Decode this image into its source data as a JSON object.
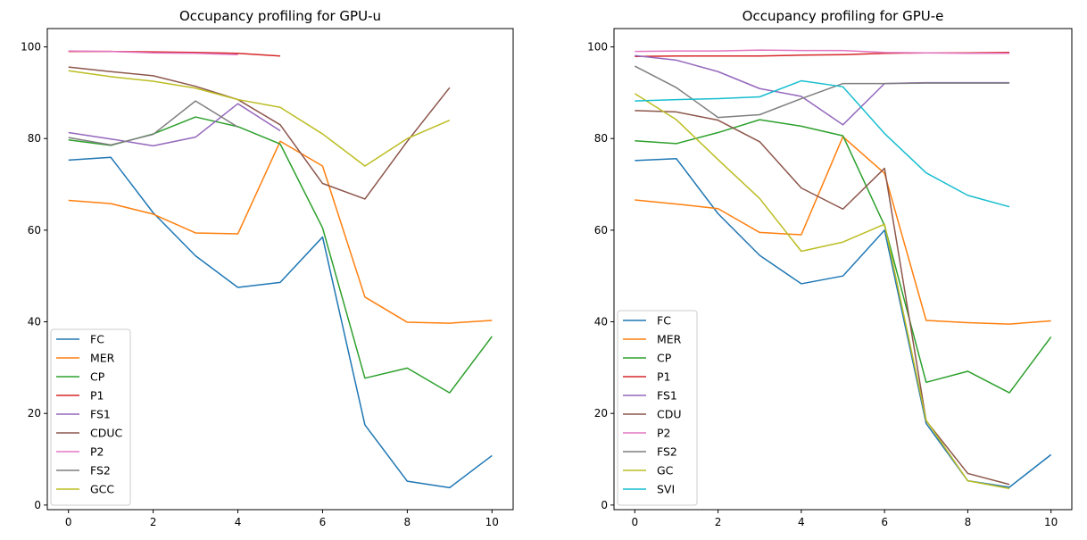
{
  "chart_data": [
    {
      "type": "line",
      "title": "Occupancy profiling for GPU-u",
      "xlabel": "",
      "ylabel": "",
      "xlim": [
        -0.5,
        10.5
      ],
      "ylim": [
        -1,
        104
      ],
      "xticks": [
        0,
        2,
        4,
        6,
        8,
        10
      ],
      "yticks": [
        0,
        20,
        40,
        60,
        80,
        100
      ],
      "grid": false,
      "legend_position": "lower-left",
      "series": [
        {
          "name": "FC",
          "color": "#1f77b4",
          "x": [
            0,
            1,
            2,
            3,
            4,
            5,
            6,
            7,
            8,
            9,
            10
          ],
          "y": [
            75.3,
            75.9,
            63.8,
            54.4,
            47.5,
            48.6,
            58.5,
            17.5,
            5.2,
            3.8,
            10.8
          ]
        },
        {
          "name": "MER",
          "color": "#ff7f0e",
          "x": [
            0,
            1,
            2,
            3,
            4,
            5,
            6,
            7,
            8,
            9,
            10
          ],
          "y": [
            66.5,
            65.8,
            63.5,
            59.4,
            59.2,
            79.4,
            74.0,
            45.4,
            39.9,
            39.7,
            40.3
          ]
        },
        {
          "name": "CP",
          "color": "#2ca02c",
          "x": [
            0,
            1,
            2,
            3,
            4,
            5,
            6,
            7,
            8,
            9,
            10
          ],
          "y": [
            79.7,
            78.5,
            81.0,
            84.7,
            82.6,
            78.8,
            60.5,
            27.7,
            29.9,
            24.5,
            36.8
          ]
        },
        {
          "name": "P1",
          "color": "#d62728",
          "x": [
            0,
            1,
            2,
            3,
            4,
            5
          ],
          "y": [
            99.0,
            99.0,
            98.9,
            98.8,
            98.6,
            98.0
          ]
        },
        {
          "name": "FS1",
          "color": "#9467bd",
          "x": [
            0,
            1,
            2,
            3,
            4,
            5
          ],
          "y": [
            81.3,
            79.9,
            78.4,
            80.3,
            87.6,
            81.7
          ]
        },
        {
          "name": "CDUC",
          "color": "#8c564b",
          "x": [
            0,
            1,
            2,
            3,
            4,
            5,
            6,
            7,
            8,
            9
          ],
          "y": [
            95.6,
            94.6,
            93.7,
            91.4,
            88.5,
            83.0,
            70.2,
            66.8,
            79.4,
            91.1
          ]
        },
        {
          "name": "P2",
          "color": "#e377c2",
          "x": [
            0,
            1,
            2,
            3,
            4
          ],
          "y": [
            99.1,
            99.0,
            98.7,
            98.6,
            98.3
          ]
        },
        {
          "name": "FS2",
          "color": "#7f7f7f",
          "x": [
            0,
            1,
            2,
            3,
            4
          ],
          "y": [
            80.2,
            78.6,
            80.9,
            88.2,
            82.5
          ]
        },
        {
          "name": "GCC",
          "color": "#bcbd22",
          "x": [
            0,
            1,
            2,
            3,
            4,
            5,
            6,
            7,
            8,
            9
          ],
          "y": [
            94.8,
            93.5,
            92.5,
            91.0,
            88.5,
            86.8,
            81.0,
            74.0,
            80.0,
            84.0
          ]
        }
      ]
    },
    {
      "type": "line",
      "title": "Occupancy profiling for GPU-e",
      "xlabel": "",
      "ylabel": "",
      "xlim": [
        -0.5,
        10.5
      ],
      "ylim": [
        -1,
        104
      ],
      "xticks": [
        0,
        2,
        4,
        6,
        8,
        10
      ],
      "yticks": [
        0,
        20,
        40,
        60,
        80,
        100
      ],
      "grid": false,
      "legend_position": "lower-left",
      "series": [
        {
          "name": "FC",
          "color": "#1f77b4",
          "x": [
            0,
            1,
            2,
            3,
            4,
            5,
            6,
            7,
            8,
            9,
            10
          ],
          "y": [
            75.2,
            75.6,
            63.6,
            54.5,
            48.3,
            50.0,
            60.0,
            17.8,
            5.3,
            3.9,
            11.0
          ]
        },
        {
          "name": "MER",
          "color": "#ff7f0e",
          "x": [
            0,
            1,
            2,
            3,
            4,
            5,
            6,
            7,
            8,
            9,
            10
          ],
          "y": [
            66.6,
            65.7,
            64.7,
            59.5,
            59.0,
            80.4,
            72.4,
            40.3,
            39.8,
            39.5,
            40.2
          ]
        },
        {
          "name": "CP",
          "color": "#2ca02c",
          "x": [
            0,
            1,
            2,
            3,
            4,
            5,
            6,
            7,
            8,
            9,
            10
          ],
          "y": [
            79.5,
            78.9,
            81.3,
            84.1,
            82.7,
            80.6,
            61.0,
            26.8,
            29.2,
            24.5,
            36.7
          ]
        },
        {
          "name": "P1",
          "color": "#d62728",
          "x": [
            0,
            1,
            2,
            3,
            4,
            5,
            6,
            7,
            8,
            9
          ],
          "y": [
            97.9,
            98.0,
            98.0,
            98.0,
            98.2,
            98.3,
            98.6,
            98.7,
            98.7,
            98.8
          ]
        },
        {
          "name": "FS1",
          "color": "#9467bd",
          "x": [
            0,
            1,
            2,
            3,
            4,
            5,
            6,
            7,
            8,
            9
          ],
          "y": [
            98.1,
            97.1,
            94.6,
            90.9,
            89.2,
            83.0,
            92.0,
            92.2,
            92.2,
            92.2
          ]
        },
        {
          "name": "CDU",
          "color": "#8c564b",
          "x": [
            0,
            1,
            2,
            3,
            4,
            5,
            6,
            7,
            8,
            9
          ],
          "y": [
            86.1,
            85.8,
            84.0,
            79.3,
            69.2,
            64.6,
            73.5,
            18.4,
            6.9,
            4.5
          ]
        },
        {
          "name": "P2",
          "color": "#e377c2",
          "x": [
            0,
            1,
            2,
            3,
            4,
            5,
            6,
            7,
            8,
            9
          ],
          "y": [
            99.0,
            99.1,
            99.1,
            99.3,
            99.2,
            99.2,
            98.8,
            98.7,
            98.6,
            98.6
          ]
        },
        {
          "name": "FS2",
          "color": "#7f7f7f",
          "x": [
            0,
            1,
            2,
            3,
            4,
            5,
            6,
            7,
            8,
            9
          ],
          "y": [
            95.8,
            91.1,
            84.6,
            85.2,
            88.7,
            92.0,
            92.0,
            92.1,
            92.1,
            92.1
          ]
        },
        {
          "name": "GC",
          "color": "#bcbd22",
          "x": [
            0,
            1,
            2,
            3,
            4,
            5,
            6,
            7,
            8,
            9
          ],
          "y": [
            89.8,
            84.1,
            75.4,
            66.9,
            55.4,
            57.4,
            61.3,
            18.5,
            5.3,
            3.6
          ]
        },
        {
          "name": "SVI",
          "color": "#17becf",
          "x": [
            0,
            1,
            2,
            3,
            4,
            5,
            6,
            7,
            8,
            9
          ],
          "y": [
            88.2,
            88.5,
            88.7,
            89.1,
            92.6,
            91.3,
            81.1,
            72.5,
            67.6,
            65.1
          ]
        }
      ]
    }
  ]
}
